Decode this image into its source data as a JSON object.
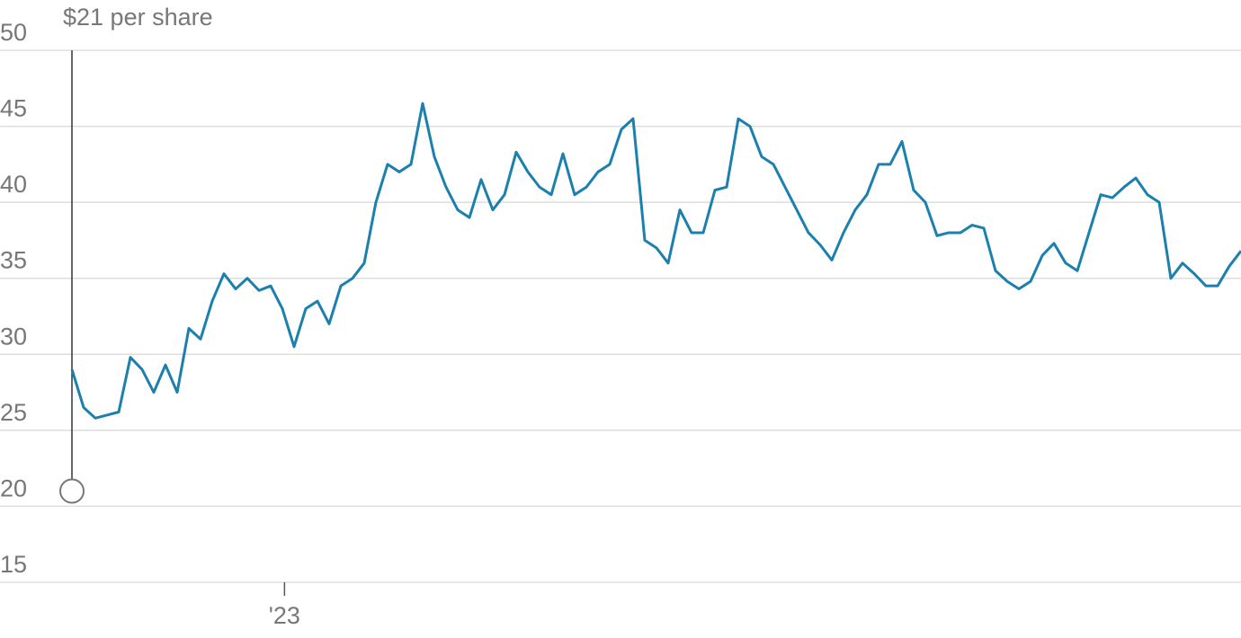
{
  "chart_data": {
    "type": "line",
    "annotation": {
      "text": "$21 per share",
      "x": 2022.8,
      "y": 21
    },
    "x": [
      2022.8,
      2022.811,
      2022.822,
      2022.833,
      2022.844,
      2022.855,
      2022.866,
      2022.877,
      2022.888,
      2022.899,
      2022.91,
      2022.921,
      2022.932,
      2022.943,
      2022.954,
      2022.965,
      2022.976,
      2022.987,
      2022.998,
      2023.009,
      2023.02,
      2023.031,
      2023.042,
      2023.053,
      2023.064,
      2023.075,
      2023.086,
      2023.097,
      2023.108,
      2023.119,
      2023.13,
      2023.141,
      2023.152,
      2023.163,
      2023.174,
      2023.185,
      2023.196,
      2023.207,
      2023.218,
      2023.229,
      2023.24,
      2023.251,
      2023.262,
      2023.273,
      2023.284,
      2023.295,
      2023.306,
      2023.317,
      2023.328,
      2023.339,
      2023.35,
      2023.361,
      2023.372,
      2023.383,
      2023.394,
      2023.405,
      2023.416,
      2023.427,
      2023.438,
      2023.449,
      2023.46,
      2023.471,
      2023.482,
      2023.493,
      2023.504,
      2023.515,
      2023.526,
      2023.537,
      2023.548,
      2023.559,
      2023.57,
      2023.581,
      2023.592,
      2023.603,
      2023.614,
      2023.625,
      2023.636,
      2023.647,
      2023.658,
      2023.669,
      2023.68,
      2023.691,
      2023.702,
      2023.713,
      2023.724,
      2023.735,
      2023.746,
      2023.757,
      2023.768,
      2023.779,
      2023.79,
      2023.801,
      2023.812,
      2023.823,
      2023.834,
      2023.845,
      2023.856,
      2023.867,
      2023.878,
      2023.889,
      2023.9
    ],
    "series": [
      {
        "color": "#1b80ad",
        "values": [
          29,
          26.5,
          25.8,
          26,
          26.2,
          29.8,
          29,
          27.5,
          29.3,
          27.5,
          31.7,
          31,
          33.5,
          35.3,
          34.3,
          35,
          34.2,
          34.5,
          33,
          30.5,
          33,
          33.5,
          32,
          34.5,
          35,
          36,
          40,
          42.5,
          42,
          42.5,
          46.5,
          43,
          41,
          39.5,
          39,
          41.5,
          39.5,
          40.5,
          43.3,
          42,
          41,
          40.5,
          43.2,
          40.5,
          41,
          42,
          42.5,
          44.8,
          45.5,
          37.5,
          37,
          36,
          39.5,
          38,
          38,
          40.8,
          41,
          45.5,
          45,
          43,
          42.5,
          41,
          39.5,
          38,
          37.2,
          36.2,
          38,
          39.5,
          40.5,
          42.5,
          42.5,
          44,
          40.8,
          40,
          37.8,
          38,
          38,
          38.5,
          38.3,
          35.5,
          34.8,
          34.3,
          34.8,
          36.5,
          37.3,
          36,
          35.5,
          38,
          40.5,
          40.3,
          41,
          41.6,
          40.5,
          40,
          35,
          36,
          35.3,
          34.5,
          34.5,
          35.8,
          36.8
        ]
      }
    ],
    "xlim": [
      2022.8,
      2023.9
    ],
    "xticks": [
      {
        "value": 2023,
        "label": "'23"
      }
    ],
    "ylim": [
      15,
      50
    ],
    "yticks": [
      15,
      20,
      25,
      30,
      35,
      40,
      45,
      50
    ],
    "grid": true
  }
}
